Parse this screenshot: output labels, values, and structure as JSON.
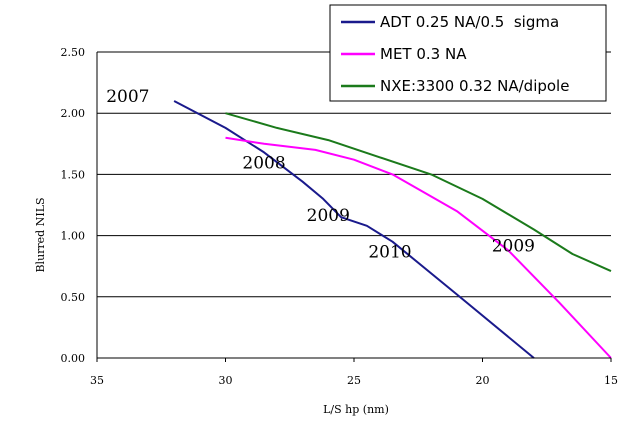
{
  "chart_data": {
    "type": "line",
    "xlabel": "L/S hp (nm)",
    "ylabel": "Blurred NILS",
    "xlim": [
      35,
      15
    ],
    "x_reversed": true,
    "ylim": [
      0,
      2.5
    ],
    "x_ticks": [
      "35",
      "30",
      "25",
      "20",
      "15"
    ],
    "y_ticks": [
      "0.00",
      "0.50",
      "1.00",
      "1.50",
      "2.00",
      "2.50"
    ],
    "grid": "horizontal",
    "legend_position": "top-right",
    "series": [
      {
        "name": "ADT 0.25 NA/0.5  sigma",
        "color": "#1a1a8c",
        "points": [
          [
            32,
            2.1
          ],
          [
            30,
            1.88
          ],
          [
            28.5,
            1.68
          ],
          [
            27,
            1.44
          ],
          [
            26.2,
            1.3
          ],
          [
            25.5,
            1.15
          ],
          [
            24.5,
            1.08
          ],
          [
            23.5,
            0.95
          ],
          [
            21,
            0.52
          ],
          [
            18,
            0
          ]
        ]
      },
      {
        "name": "MET 0.3 NA",
        "color": "#ff00ff",
        "points": [
          [
            30,
            1.8
          ],
          [
            28.5,
            1.75
          ],
          [
            26.5,
            1.7
          ],
          [
            25,
            1.62
          ],
          [
            23.5,
            1.5
          ],
          [
            21,
            1.2
          ],
          [
            19,
            0.88
          ],
          [
            17,
            0.45
          ],
          [
            15,
            0
          ]
        ]
      },
      {
        "name": "NXE:3300 0.32 NA/dipole",
        "color": "#1b7a1b",
        "points": [
          [
            30,
            2.0
          ],
          [
            28,
            1.88
          ],
          [
            26,
            1.78
          ],
          [
            24,
            1.64
          ],
          [
            22,
            1.5
          ],
          [
            20,
            1.3
          ],
          [
            18,
            1.05
          ],
          [
            16.5,
            0.85
          ],
          [
            15,
            0.71
          ]
        ]
      }
    ],
    "annotations": [
      {
        "text": "2007",
        "x": 33.8,
        "y": 2.09
      },
      {
        "text": "2008",
        "x": 28.5,
        "y": 1.55
      },
      {
        "text": "2009",
        "x": 26,
        "y": 1.12
      },
      {
        "text": "2010",
        "x": 23.6,
        "y": 0.82
      },
      {
        "text": "2009",
        "x": 18.8,
        "y": 0.87
      }
    ]
  }
}
